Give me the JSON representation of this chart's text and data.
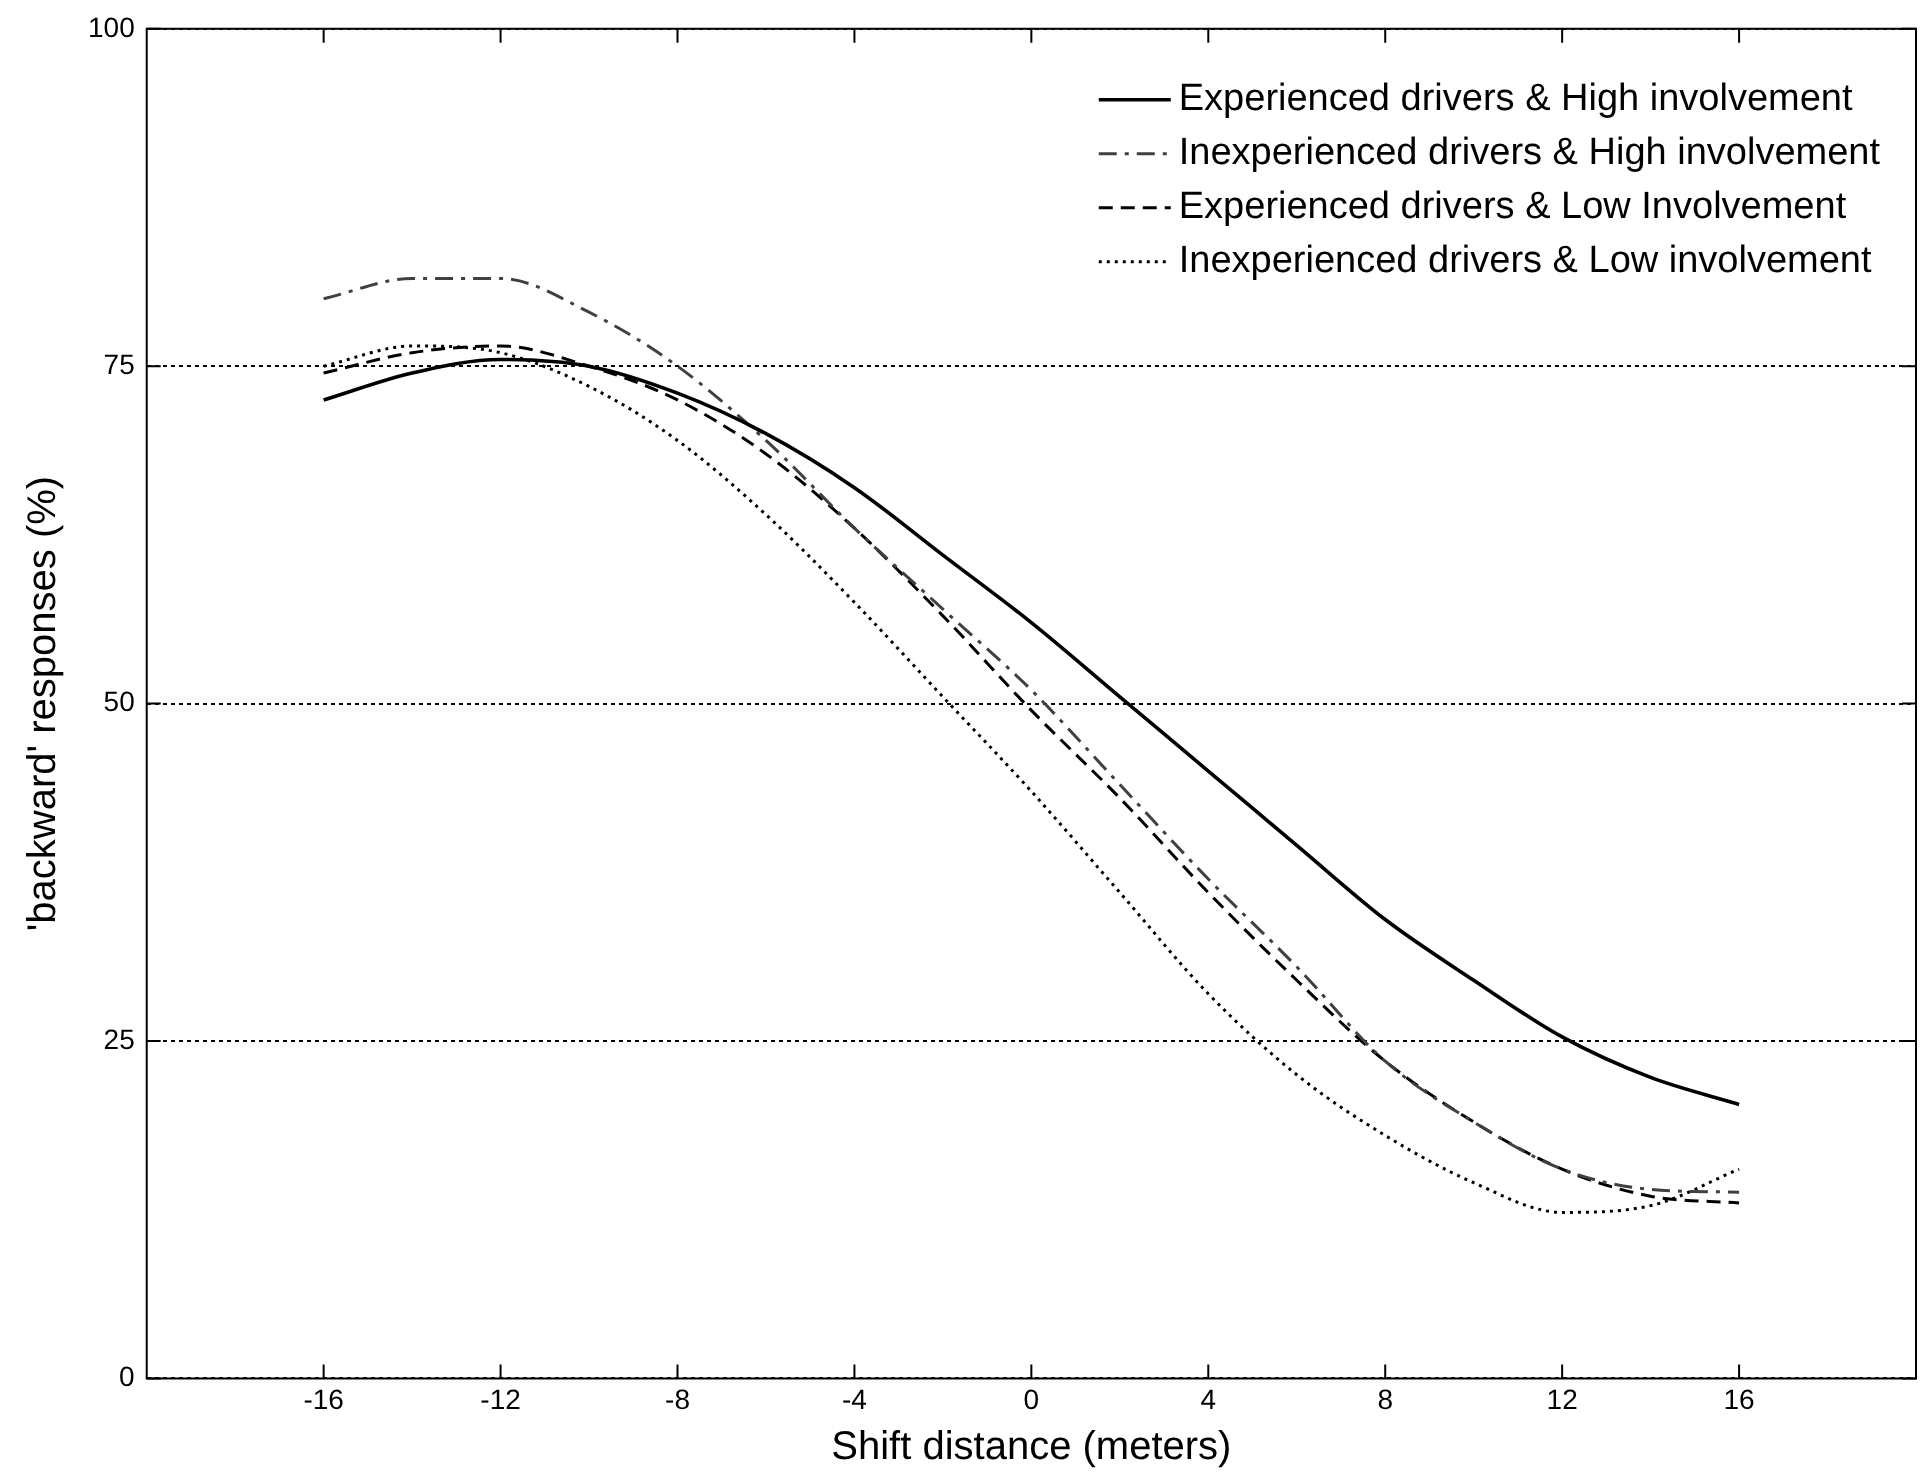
{
  "chart_data": {
    "type": "line",
    "xlabel": "Shift distance (meters)",
    "ylabel": "'backward' responses (%)",
    "x": [
      -16,
      -14,
      -12,
      -10,
      -8,
      -6,
      -4,
      -2,
      0,
      2,
      4,
      6,
      8,
      10,
      12,
      14,
      16
    ],
    "series": [
      {
        "name": "Experienced drivers & High involvement",
        "color": "#000000",
        "line_style": "solid",
        "values": [
          72.5,
          74.5,
          75.5,
          75,
          73,
          70,
          66,
          61,
          56,
          50.5,
          45,
          39.5,
          34,
          29.5,
          25.3,
          22.3,
          20.3
        ]
      },
      {
        "name": "Inexperienced drivers & High involvement",
        "color": "#404040",
        "line_style": "dashdot",
        "values": [
          80,
          81.5,
          81.5,
          79,
          75,
          69.5,
          63,
          57,
          51,
          44,
          37,
          30.5,
          23.5,
          19,
          15.5,
          14,
          13.8
        ]
      },
      {
        "name": "Experienced drivers & Low Involvement",
        "color": "#000000",
        "line_style": "dashed",
        "values": [
          74.5,
          76,
          76.5,
          75,
          72.5,
          68.5,
          63,
          56.5,
          49.5,
          43,
          36,
          29.5,
          23.5,
          19,
          15.5,
          13.5,
          13
        ]
      },
      {
        "name": "Inexperienced drivers & Low involvement",
        "color": "#000000",
        "line_style": "dotted",
        "values": [
          75,
          76.5,
          76,
          73.5,
          69.5,
          64,
          57.5,
          50.5,
          43.5,
          36,
          28.5,
          22.5,
          18,
          14.5,
          12.3,
          12.8,
          15.5
        ]
      }
    ],
    "xlim": [
      -20,
      20
    ],
    "xticks": [
      -16,
      -12,
      -8,
      -4,
      0,
      4,
      8,
      12,
      16
    ],
    "ylim": [
      0,
      100
    ],
    "yticks": [
      0,
      25,
      50,
      75,
      100
    ],
    "grid": "y",
    "legend": "top right",
    "marker": "none"
  }
}
